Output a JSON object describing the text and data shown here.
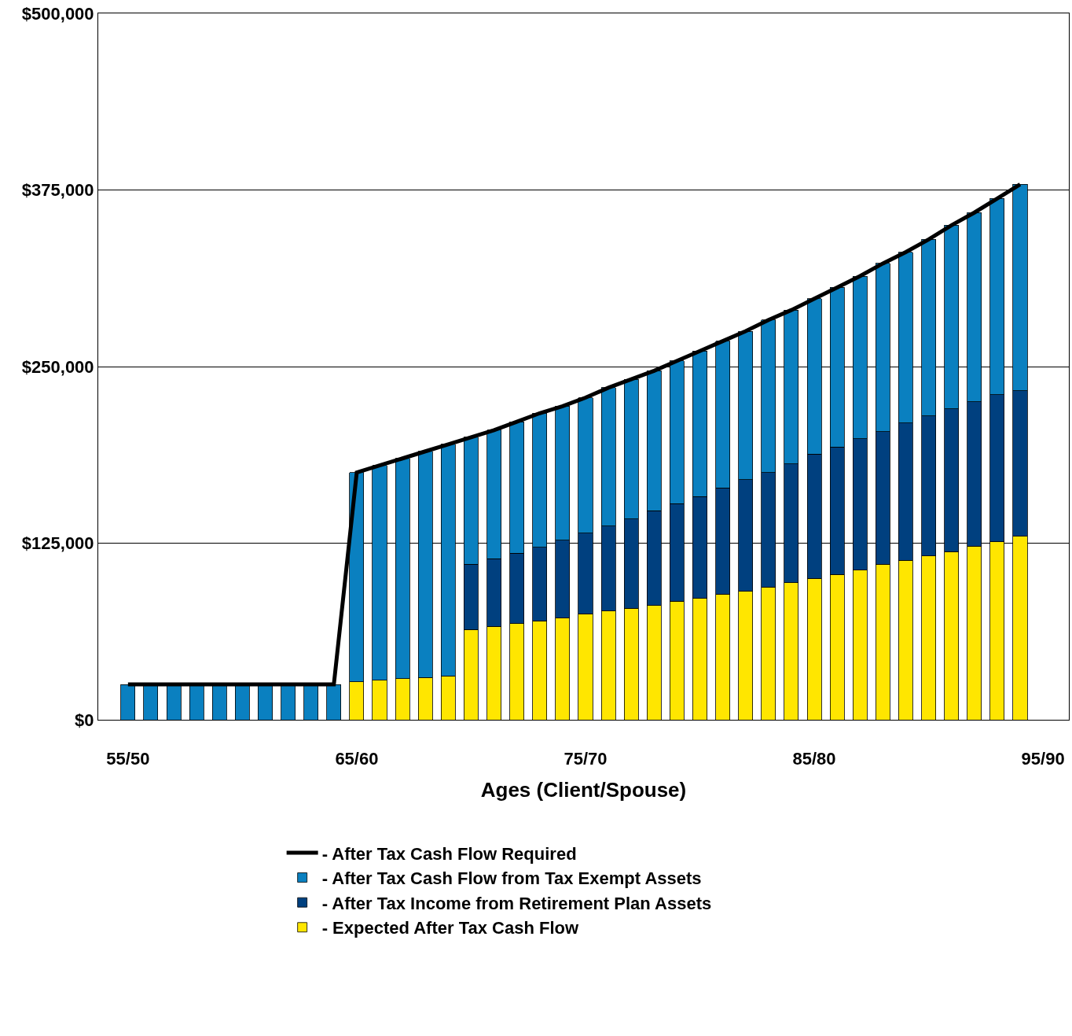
{
  "chart_data": {
    "type": "bar",
    "stacked": true,
    "xlabel": "Ages (Client/Spouse)",
    "categories": [
      "55/50",
      null,
      null,
      null,
      null,
      null,
      null,
      null,
      null,
      null,
      "65/60",
      null,
      null,
      null,
      null,
      null,
      null,
      null,
      null,
      null,
      "75/70",
      null,
      null,
      null,
      null,
      null,
      null,
      null,
      null,
      null,
      "85/80",
      null,
      null,
      null,
      null,
      null,
      null,
      null,
      null,
      null,
      "95/90"
    ],
    "series": [
      {
        "name": "- Expected After Tax Cash Flow",
        "color": "#ffe600",
        "values": [
          null,
          null,
          null,
          null,
          null,
          null,
          null,
          null,
          null,
          null,
          27000,
          28000,
          29000,
          30000,
          31000,
          64000,
          66000,
          68000,
          70000,
          72000,
          75000,
          77000,
          79000,
          81000,
          84000,
          86000,
          89000,
          91000,
          94000,
          97000,
          100000,
          103000,
          106000,
          110000,
          113000,
          116000,
          119000,
          123000,
          126000,
          130000,
          null
        ]
      },
      {
        "name": "- After Tax Income from Retirement Plan Assets",
        "color": "#00407f",
        "values": [
          null,
          null,
          null,
          null,
          null,
          null,
          null,
          null,
          null,
          null,
          null,
          null,
          null,
          null,
          null,
          46000,
          48000,
          50000,
          52000,
          55000,
          57000,
          60000,
          63000,
          67000,
          69000,
          72000,
          75000,
          79000,
          81000,
          84000,
          88000,
          90000,
          93000,
          94000,
          97000,
          99000,
          101000,
          102000,
          104000,
          103000,
          null
        ]
      },
      {
        "name": "- After Tax Cash Flow from Tax Exempt Assets",
        "color": "#0a80c0",
        "values": [
          25000,
          25000,
          25000,
          25000,
          25000,
          25000,
          25000,
          25000,
          25000,
          25000,
          148000,
          152000,
          156000,
          160000,
          164000,
          90000,
          91000,
          93000,
          95000,
          95000,
          96000,
          98000,
          99000,
          99000,
          101000,
          103000,
          104000,
          105000,
          108000,
          109000,
          110000,
          113000,
          115000,
          119000,
          121000,
          125000,
          130000,
          134000,
          139000,
          146000,
          null
        ]
      },
      {
        "name": "- After Tax Cash Flow Required",
        "type": "line",
        "color": "#000000",
        "line_style": "solid",
        "marker": "none",
        "values": [
          25000,
          25000,
          25000,
          25000,
          25000,
          25000,
          25000,
          25000,
          25000,
          25000,
          175000,
          180000,
          185000,
          190000,
          195000,
          200000,
          205000,
          211000,
          217000,
          222000,
          228000,
          235000,
          241000,
          247000,
          254000,
          261000,
          268000,
          275000,
          283000,
          290000,
          298000,
          306000,
          314000,
          323000,
          331000,
          340000,
          350000,
          359000,
          369000,
          379000,
          null
        ]
      }
    ],
    "ylim": [
      0,
      500000
    ],
    "yticks": [
      {
        "value": 0,
        "label": "$0"
      },
      {
        "value": 125000,
        "label": "$125,000"
      },
      {
        "value": 250000,
        "label": "$250,000"
      },
      {
        "value": 375000,
        "label": "$375,000"
      },
      {
        "value": 500000,
        "label": "$500,000"
      }
    ],
    "grid": "y",
    "legend": "bottom"
  }
}
